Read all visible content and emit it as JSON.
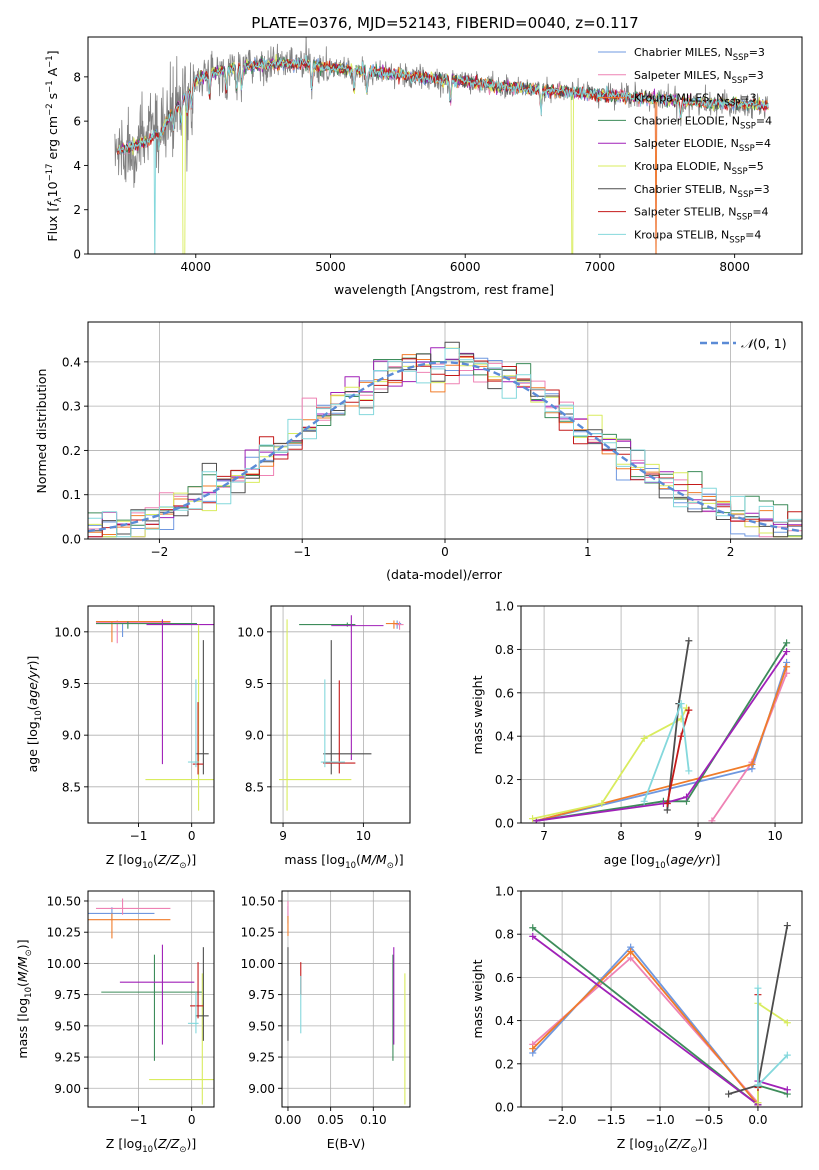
{
  "figure_title": "PLATE=0376, MJD=52143, FIBERID=0040, z=0.117",
  "colors": {
    "chabrier_miles": "#6f98e0",
    "salpeter_miles": "#ee82b4",
    "kroupa_miles": "#f07c2a",
    "chabrier_elodie": "#3d8c5a",
    "salpeter_elodie": "#a021b8",
    "kroupa_elodie": "#d9ec5e",
    "chabrier_stelib": "#4d4d4d",
    "salpeter_stelib": "#c41a1a",
    "kroupa_stelib": "#84d8dc",
    "normal": "#5b8bd6"
  },
  "chart_data": [
    {
      "id": "spectrum",
      "type": "line",
      "title": "PLATE=0376, MJD=52143, FIBERID=0040, z=0.117",
      "xlabel": "wavelength [Angstrom, rest frame]",
      "ylabel": "Flux [f_λ10^-17 erg cm^-2 s^-1 A^-1]",
      "xlim": [
        3200,
        8500
      ],
      "ylim": [
        0,
        9.8
      ],
      "xticks": [
        4000,
        5000,
        6000,
        7000,
        8000
      ],
      "yticks": [
        0,
        2,
        4,
        6,
        8
      ],
      "grid": false,
      "legend_position": "top-right",
      "legend": [
        {
          "label": "Chabrier MILES, N",
          "sub": "SSP",
          "suffix": "=3",
          "color_key": "chabrier_miles"
        },
        {
          "label": "Salpeter MILES, N",
          "sub": "SSP",
          "suffix": "=3",
          "color_key": "salpeter_miles"
        },
        {
          "label": "Kroupa MILES, N",
          "sub": "SSP",
          "suffix": "=3",
          "color_key": "kroupa_miles"
        },
        {
          "label": "Chabrier ELODIE, N",
          "sub": "SSP",
          "suffix": "=4",
          "color_key": "chabrier_elodie"
        },
        {
          "label": "Salpeter ELODIE, N",
          "sub": "SSP",
          "suffix": "=4",
          "color_key": "salpeter_elodie"
        },
        {
          "label": "Kroupa ELODIE, N",
          "sub": "SSP",
          "suffix": "=5",
          "color_key": "kroupa_elodie"
        },
        {
          "label": "Chabrier STELIB, N",
          "sub": "SSP",
          "suffix": "=3",
          "color_key": "chabrier_stelib"
        },
        {
          "label": "Salpeter STELIB, N",
          "sub": "SSP",
          "suffix": "=4",
          "color_key": "salpeter_stelib"
        },
        {
          "label": "Kroupa STELIB, N",
          "sub": "SSP",
          "suffix": "=4",
          "color_key": "kroupa_stelib"
        }
      ],
      "continuum_x": [
        3400,
        3500,
        3650,
        3750,
        3850,
        3950,
        4000,
        4100,
        4200,
        4400,
        4600,
        4800,
        5000,
        5200,
        5400,
        5600,
        5800,
        6000,
        6200,
        6400,
        6600,
        6800,
        7000,
        7200,
        7400,
        7600,
        7800,
        8000,
        8250
      ],
      "continuum_y": [
        4.6,
        4.8,
        5.1,
        5.6,
        6.6,
        7.3,
        7.9,
        8.1,
        8.3,
        8.5,
        8.6,
        8.6,
        8.4,
        8.3,
        8.2,
        8.0,
        7.9,
        7.8,
        7.6,
        7.5,
        7.4,
        7.3,
        7.2,
        7.1,
        7.0,
        6.9,
        6.8,
        6.8,
        6.7
      ],
      "data_range": [
        3400,
        8250
      ]
    },
    {
      "id": "residuals",
      "type": "line",
      "xlabel": "(data-model)/error",
      "ylabel": "Normed distribution",
      "xlim": [
        -2.5,
        2.5
      ],
      "ylim": [
        0,
        0.49
      ],
      "xticks": [
        -2,
        -1,
        0,
        1,
        2
      ],
      "yticks": [
        0.0,
        0.1,
        0.2,
        0.3,
        0.4
      ],
      "grid": true,
      "legend_position": "top-right",
      "legend": [
        {
          "label": "𝒩(0, 1)",
          "style": "dashed"
        }
      ],
      "normal_curve": {
        "mean": 0,
        "sigma": 1
      }
    },
    {
      "id": "age_vs_Z",
      "type": "scatter",
      "xlabel": "Z [log10(Z/Z⊙)]",
      "ylabel": "age [log10(age/yr)]",
      "xlim": [
        -1.95,
        0.42
      ],
      "ylim": [
        8.15,
        10.25
      ],
      "xticks": [
        -1,
        0
      ],
      "yticks": [
        8.5,
        9.0,
        9.5,
        10.0
      ],
      "grid": true
    },
    {
      "id": "age_vs_mass",
      "type": "scatter",
      "xlabel": "mass [log10(M/M⊙)]",
      "xlim": [
        8.85,
        10.58
      ],
      "ylim": [
        8.15,
        10.25
      ],
      "xticks": [
        9,
        10
      ],
      "yticks": [
        8.5,
        9.0,
        9.5,
        10.0
      ],
      "grid": true
    },
    {
      "id": "mass_weight_vs_age",
      "type": "line",
      "xlabel": "age [log10(age/yr)]",
      "ylabel": "mass weight",
      "xlim": [
        6.7,
        10.35
      ],
      "ylim": [
        0,
        1.0
      ],
      "xticks": [
        7,
        8,
        9,
        10
      ],
      "yticks": [
        0.0,
        0.2,
        0.4,
        0.6,
        0.8,
        1.0
      ],
      "grid": true,
      "series": [
        {
          "color_key": "chabrier_miles",
          "x": [
            6.9,
            9.7,
            10.15
          ],
          "y": [
            0.01,
            0.25,
            0.74
          ]
        },
        {
          "color_key": "salpeter_miles",
          "x": [
            9.18,
            9.7,
            10.15
          ],
          "y": [
            0.01,
            0.28,
            0.69
          ]
        },
        {
          "color_key": "kroupa_miles",
          "x": [
            6.9,
            9.7,
            10.15
          ],
          "y": [
            0.01,
            0.27,
            0.72
          ]
        },
        {
          "color_key": "chabrier_elodie",
          "x": [
            6.9,
            8.55,
            8.85,
            10.15
          ],
          "y": [
            0.01,
            0.1,
            0.1,
            0.83
          ]
        },
        {
          "color_key": "salpeter_elodie",
          "x": [
            6.9,
            8.55,
            8.85,
            10.15
          ],
          "y": [
            0.01,
            0.09,
            0.12,
            0.79
          ]
        },
        {
          "color_key": "kroupa_elodie",
          "x": [
            6.85,
            7.75,
            8.3,
            8.78,
            8.85
          ],
          "y": [
            0.02,
            0.09,
            0.39,
            0.48,
            0.53
          ]
        },
        {
          "color_key": "chabrier_stelib",
          "x": [
            8.6,
            8.75,
            8.88
          ],
          "y": [
            0.06,
            0.55,
            0.84
          ]
        },
        {
          "color_key": "salpeter_stelib",
          "x": [
            8.6,
            8.78,
            8.88
          ],
          "y": [
            0.09,
            0.4,
            0.52
          ]
        },
        {
          "color_key": "kroupa_stelib",
          "x": [
            8.3,
            8.78,
            8.88
          ],
          "y": [
            0.1,
            0.55,
            0.24
          ]
        }
      ]
    },
    {
      "id": "mass_vs_Z",
      "type": "scatter",
      "xlabel": "Z [log10(Z/Z⊙)]",
      "ylabel": "mass [log10(M/M⊙)]",
      "xlim": [
        -1.95,
        0.42
      ],
      "ylim": [
        8.85,
        10.58
      ],
      "xticks": [
        -1,
        0
      ],
      "yticks": [
        9.0,
        9.25,
        9.5,
        9.75,
        10.0,
        10.25,
        10.5
      ],
      "grid": true
    },
    {
      "id": "mass_vs_ebv",
      "type": "scatter",
      "xlabel": "E(B-V)",
      "xlim": [
        -0.007,
        0.143
      ],
      "ylim": [
        8.85,
        10.58
      ],
      "xticks": [
        0.0,
        0.05,
        0.1
      ],
      "xtick_labels": [
        "0.00",
        "0.05",
        "0.10"
      ],
      "yticks": [
        9.0,
        9.25,
        9.5,
        9.75,
        10.0,
        10.25,
        10.5
      ],
      "grid": true
    },
    {
      "id": "mass_weight_vs_Z",
      "type": "line",
      "xlabel": "Z [log10(Z/Z⊙)]",
      "ylabel": "mass weight",
      "xlim": [
        -2.42,
        0.45
      ],
      "ylim": [
        0,
        1.0
      ],
      "xticks": [
        -2.0,
        -1.5,
        -1.0,
        -0.5,
        0.0
      ],
      "xtick_labels": [
        "−2.0",
        "−1.5",
        "−1.0",
        "−0.5",
        "0.0"
      ],
      "yticks": [
        0.0,
        0.2,
        0.4,
        0.6,
        0.8,
        1.0
      ],
      "grid": true,
      "series": [
        {
          "color_key": "chabrier_miles",
          "x": [
            -2.3,
            -1.3,
            0.0
          ],
          "y": [
            0.25,
            0.74,
            0.01
          ]
        },
        {
          "color_key": "salpeter_miles",
          "x": [
            -2.3,
            -1.3,
            0.0
          ],
          "y": [
            0.29,
            0.69,
            0.02
          ]
        },
        {
          "color_key": "kroupa_miles",
          "x": [
            -2.3,
            -1.3,
            0.0
          ],
          "y": [
            0.27,
            0.72,
            0.01
          ]
        },
        {
          "color_key": "chabrier_elodie",
          "x": [
            -2.3,
            0.0,
            0.0,
            0.3
          ],
          "y": [
            0.83,
            0.01,
            0.1,
            0.06
          ]
        },
        {
          "color_key": "salpeter_elodie",
          "x": [
            -2.3,
            0.0,
            0.0,
            0.3
          ],
          "y": [
            0.79,
            0.01,
            0.12,
            0.08
          ]
        },
        {
          "color_key": "kroupa_elodie",
          "x": [
            0.0,
            0.0,
            0.3
          ],
          "y": [
            0.02,
            0.48,
            0.39
          ]
        },
        {
          "color_key": "chabrier_stelib",
          "x": [
            -0.3,
            0.0,
            0.3
          ],
          "y": [
            0.06,
            0.1,
            0.84
          ]
        },
        {
          "color_key": "salpeter_stelib",
          "x": [
            0.0,
            0.0
          ],
          "y": [
            0.09,
            0.52
          ]
        },
        {
          "color_key": "kroupa_stelib",
          "x": [
            0.0,
            0.0,
            0.3
          ],
          "y": [
            0.55,
            0.1,
            0.24
          ]
        }
      ]
    }
  ]
}
